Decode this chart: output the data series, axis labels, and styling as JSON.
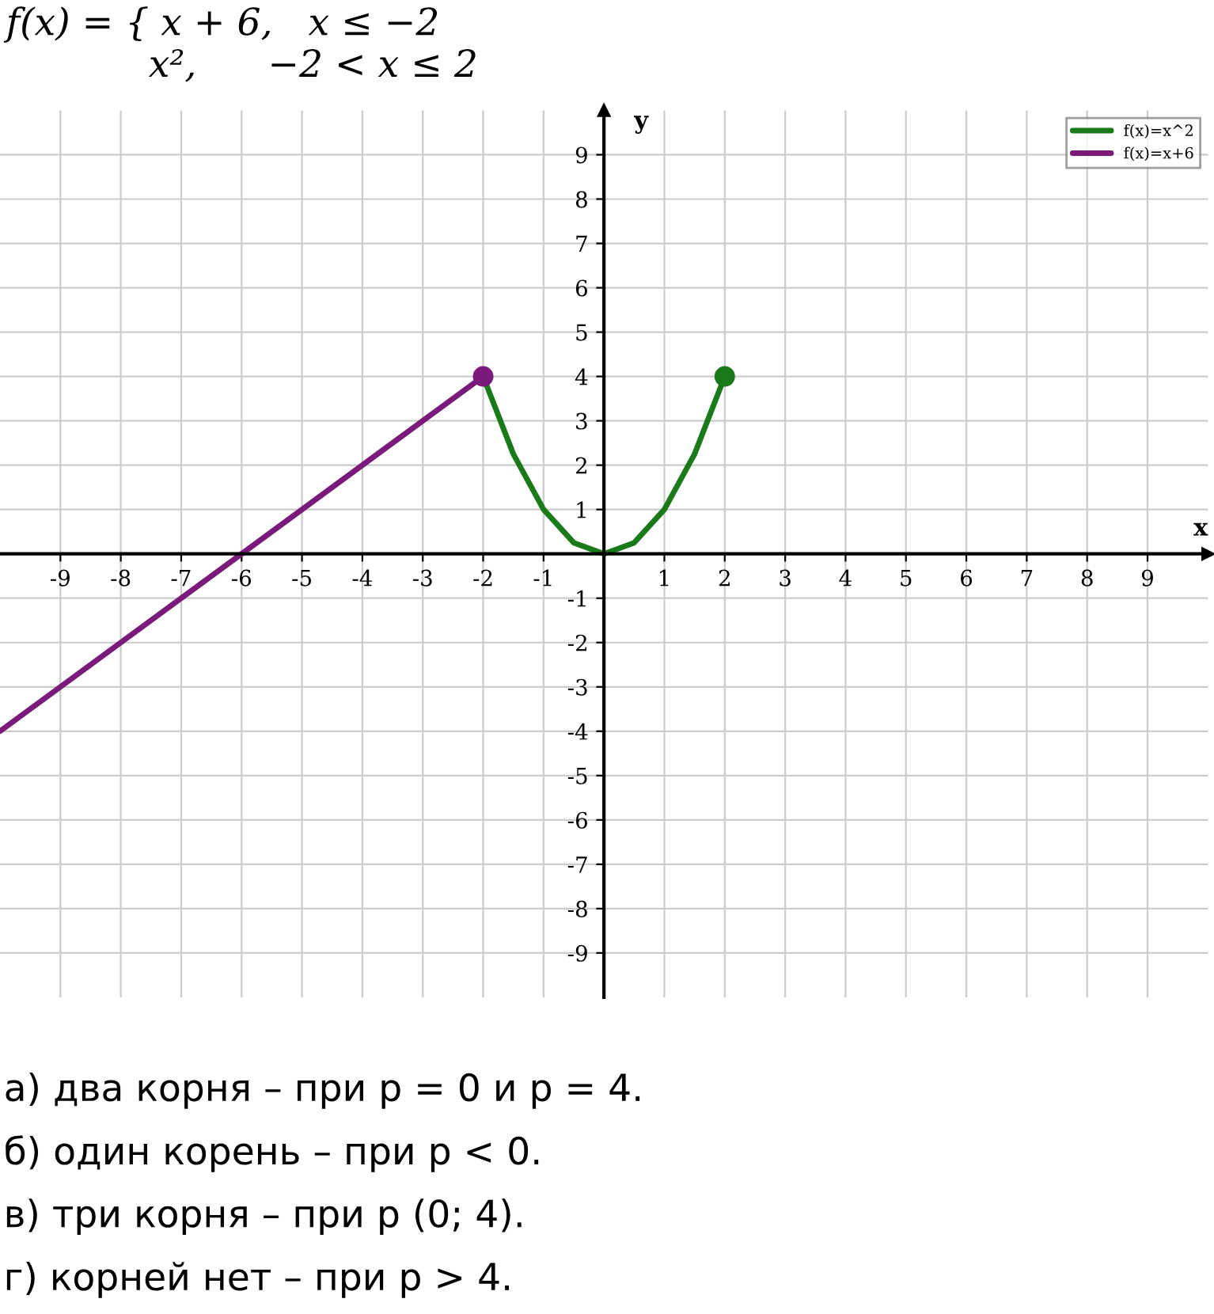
{
  "chart_data": {
    "type": "line",
    "title": "f(x) = { x + 6,   x ≤ −2\n            x²,      −2 < x ≤ 2",
    "xlabel": "x",
    "ylabel": "y",
    "xlim": [
      -10,
      10
    ],
    "ylim": [
      -10,
      10
    ],
    "xticks": [
      -9,
      -8,
      -7,
      -6,
      -5,
      -4,
      -3,
      -2,
      -1,
      1,
      2,
      3,
      4,
      5,
      6,
      7,
      8,
      9
    ],
    "yticks": [
      -9,
      -8,
      -7,
      -6,
      -5,
      -4,
      -3,
      -2,
      -1,
      1,
      2,
      3,
      4,
      5,
      6,
      7,
      8,
      9
    ],
    "grid": true,
    "legend": "top right",
    "series": [
      {
        "name": "f(x)=x^2",
        "color": "#1a7a1a",
        "x": [
          -2,
          -1.5,
          -1,
          -0.5,
          0,
          0.5,
          1,
          1.5,
          2
        ],
        "values": [
          4,
          2.25,
          1,
          0.25,
          0,
          0.25,
          1,
          2.25,
          4
        ]
      },
      {
        "name": "f(x)=x+6",
        "color": "#7a1a7a",
        "x": [
          -10,
          -2
        ],
        "values": [
          -4,
          4
        ]
      },
      {
        "type": "scatter",
        "color": "#7a1a7a",
        "x": [
          -2
        ],
        "values": [
          4
        ]
      },
      {
        "type": "scatter",
        "color": "#1a7a1a",
        "x": [
          2
        ],
        "values": [
          4
        ]
      }
    ],
    "annotations": [
      "а) два корня – при p = 0 и p = 4.",
      "б) один корень – при p < 0.",
      "в) три корня – при p (0; 4).",
      "г) корней нет – при p > 4."
    ]
  }
}
